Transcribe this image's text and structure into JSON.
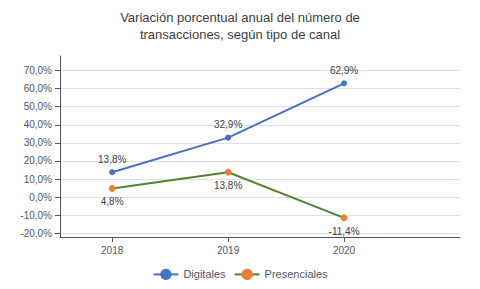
{
  "chart_data": {
    "type": "line",
    "title": "Variación porcentual anual del número de\ntransacciones, según tipo de canal",
    "x": [
      2018,
      2019,
      2020
    ],
    "xlim": [
      2017.55,
      2021.0
    ],
    "xticks": [
      2018,
      2019,
      2020
    ],
    "ylim": [
      -22,
      78
    ],
    "yticks": [
      {
        "value": -20,
        "label": "-20,0%"
      },
      {
        "value": -10,
        "label": "-10,0%"
      },
      {
        "value": 0,
        "label": "0,0%"
      },
      {
        "value": 10,
        "label": "10,0%"
      },
      {
        "value": 20,
        "label": "20,0%"
      },
      {
        "value": 30,
        "label": "30,0%"
      },
      {
        "value": 40,
        "label": "40,0%"
      },
      {
        "value": 50,
        "label": "50,0%"
      },
      {
        "value": 60,
        "label": "60,0%"
      },
      {
        "value": 70,
        "label": "70,0%"
      }
    ],
    "grid": true,
    "legend": "bottom",
    "data_labels": true,
    "series": [
      {
        "name": "Digitales",
        "color": "#4472C4",
        "marker": "circle",
        "values": [
          13.8,
          32.9,
          62.9
        ],
        "value_labels": [
          "13,8%",
          "32,9%",
          "62,9%"
        ]
      },
      {
        "name": "Presenciales",
        "color": "#538135",
        "colors": [
          "#ED7D31",
          "#ED7D31",
          "#ED7D31"
        ],
        "marker": "circle",
        "values": [
          4.8,
          13.8,
          -11.4
        ],
        "value_labels": [
          "4,8%",
          "13,8%",
          "-11,4%"
        ]
      }
    ]
  }
}
